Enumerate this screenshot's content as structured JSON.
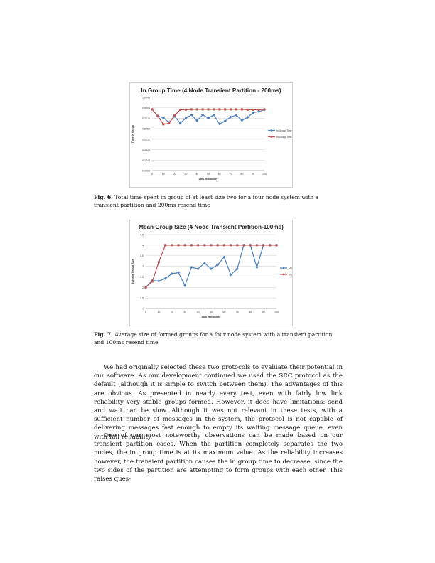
{
  "figures": [
    {
      "caption_label": "Fig. 6.",
      "caption_text": "Total time spent in group of at least size two for a four node system with a transient partition and 200ms resend time"
    },
    {
      "caption_label": "Fig. 7.",
      "caption_text": "Average size of formed groups for a four node system with a transient partition and 100ms resend time"
    }
  ],
  "paragraphs": [
    "We had originally selected these two protocols to evaluate their potential in our software. As our development continued we used the SRC protocol as the default (although it is simple to switch between them). The advantages of this are obvious. As presented in nearly every test, even with fairly low link reliability very stable groups formed. However, it does have limitations: send and wait can be slow. Although it was not relevant in these tests, with a sufficient number of messages in the system, the protocol is not capable of delivering messages fast enough to empty its waiting message queue, even with full reliability.",
    "One of our most noteworthy observations can be made based on our transient partition cases. When the partition completely separates the two nodes, the in group time is at its maximum value. As the reliability increases however, the transient partition causes the in group time to decrease, since the two sides of the partition are attempting to form groups with each other. This raises ques-"
  ],
  "chart_data": [
    {
      "type": "line",
      "title": "In Group Time (4 Node Transient Partition - 200ms)",
      "xlabel": "Link Reliability",
      "ylabel": "Time In Group",
      "x": [
        0,
        5,
        10,
        15,
        20,
        25,
        30,
        35,
        40,
        45,
        50,
        55,
        60,
        65,
        70,
        75,
        80,
        85,
        90,
        95,
        100
      ],
      "x_ticks": [
        "0",
        "10",
        "20",
        "30",
        "40",
        "50",
        "60",
        "70",
        "80",
        "90",
        "100"
      ],
      "y_ticks": [
        "0.0000",
        "0.1744",
        "0.3528",
        "0.5232",
        "0.6456",
        "0.7120",
        "0.8304",
        "1.0048"
      ],
      "ylim": [
        0,
        1.0048
      ],
      "grid": true,
      "legend": "right",
      "series": [
        {
          "name": "In Group Time (SLC)",
          "color": "#4a7ebb",
          "values": [
            0.84,
            0.745,
            0.725,
            0.66,
            0.745,
            0.65,
            0.72,
            0.765,
            0.685,
            0.765,
            0.72,
            0.765,
            0.64,
            0.68,
            0.735,
            0.76,
            0.69,
            0.73,
            0.795,
            0.81,
            0.835
          ]
        },
        {
          "name": "In Group Time (SRC)",
          "color": "#c0504d",
          "values": [
            0.84,
            0.75,
            0.635,
            0.65,
            0.755,
            0.835,
            0.835,
            0.84,
            0.84,
            0.84,
            0.84,
            0.84,
            0.84,
            0.84,
            0.84,
            0.84,
            0.84,
            0.835,
            0.835,
            0.835,
            0.84
          ]
        }
      ]
    },
    {
      "type": "line",
      "title": "Mean Group Size (4 Node Transient Partition-100ms)",
      "xlabel": "Link Reliability",
      "ylabel": "Average Group Size",
      "x": [
        0,
        5,
        10,
        15,
        20,
        25,
        30,
        35,
        40,
        45,
        50,
        55,
        60,
        65,
        70,
        75,
        80,
        85,
        90,
        95,
        100
      ],
      "x_ticks": [
        "0",
        "10",
        "20",
        "30",
        "40",
        "50",
        "60",
        "70",
        "80",
        "90",
        "100"
      ],
      "y_ticks": [
        "1",
        "1.5",
        "2",
        "2.5",
        "3",
        "3.5",
        "4",
        "4.5"
      ],
      "ylim": [
        1,
        4.5
      ],
      "grid": true,
      "legend": "right",
      "series": [
        {
          "name": "MGS (SLC)",
          "color": "#4a7ebb",
          "values": [
            2.0,
            2.32,
            2.3,
            2.42,
            2.65,
            2.7,
            2.08,
            2.95,
            2.88,
            3.15,
            2.88,
            3.07,
            3.43,
            2.6,
            2.88,
            4.0,
            4.0,
            2.95,
            4.0,
            4.0,
            4.0
          ]
        },
        {
          "name": "MGS (SRC)",
          "color": "#c0504d",
          "values": [
            2.0,
            2.28,
            3.2,
            4.0,
            4.0,
            4.0,
            4.0,
            4.0,
            4.0,
            4.0,
            4.0,
            4.0,
            4.0,
            4.0,
            4.0,
            4.0,
            4.0,
            4.0,
            4.0,
            4.0,
            4.0
          ]
        }
      ]
    }
  ]
}
